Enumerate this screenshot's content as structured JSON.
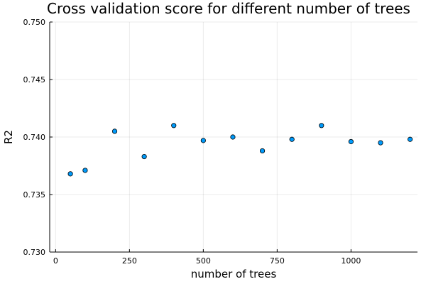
{
  "chart_data": {
    "type": "scatter",
    "title": "Cross validation score for different number of trees",
    "xlabel": "number of trees",
    "ylabel": "R2",
    "xlim": [
      -20,
      1225
    ],
    "ylim": [
      0.73,
      0.75
    ],
    "xticks": [
      0,
      250,
      500,
      750,
      1000
    ],
    "xtick_labels": [
      "0",
      "250",
      "500",
      "750",
      "1000"
    ],
    "yticks": [
      0.73,
      0.735,
      0.74,
      0.745,
      0.75
    ],
    "ytick_labels": [
      "0.730",
      "0.735",
      "0.740",
      "0.745",
      "0.750"
    ],
    "grid": true,
    "legend": false,
    "point_color": "#009AFA",
    "series": [
      {
        "x": [
          50,
          100,
          200,
          300,
          400,
          500,
          600,
          700,
          800,
          900,
          1000,
          1100,
          1200
        ],
        "y": [
          0.7368,
          0.7371,
          0.7405,
          0.7383,
          0.741,
          0.7397,
          0.74,
          0.7388,
          0.7398,
          0.741,
          0.7396,
          0.7395,
          0.7398
        ]
      }
    ]
  }
}
